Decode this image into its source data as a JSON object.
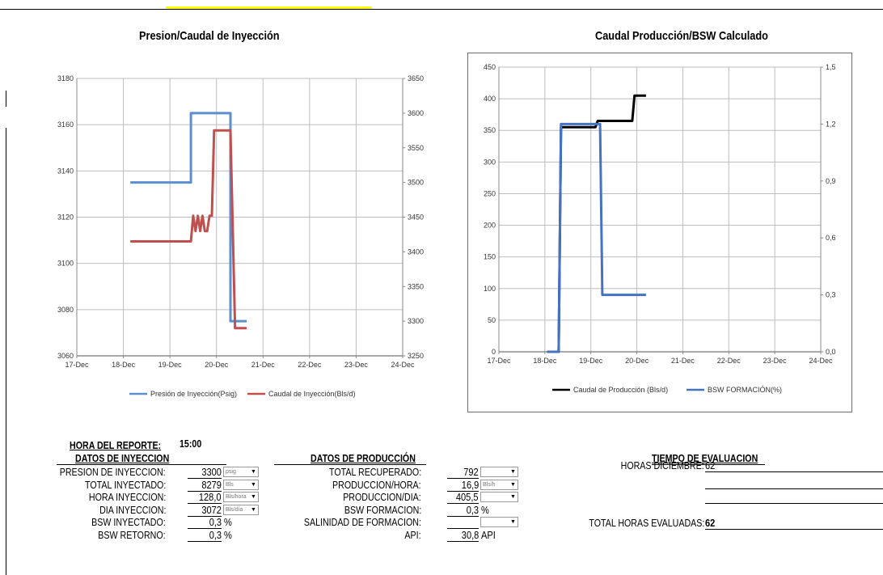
{
  "chart_data": [
    {
      "type": "line",
      "title": "Presion/Caudal de Inyección",
      "x_ticks": [
        "17-Dec",
        "18-Dec",
        "19-Dec",
        "20-Dec",
        "21-Dec",
        "22-Dec",
        "23-Dec",
        "24-Dec"
      ],
      "y_left_ticks": [
        "3180",
        "3160",
        "3140",
        "3120",
        "3100",
        "3080",
        "3060"
      ],
      "y_right_ticks": [
        "3650",
        "3600",
        "3550",
        "3500",
        "3450",
        "3400",
        "3350",
        "3300",
        "3250"
      ],
      "ylim_left": [
        3060,
        3180
      ],
      "ylim_right": [
        3250,
        3650
      ],
      "grid": true,
      "legend_position": "bottom",
      "series": [
        {
          "name": "Presión de Inyección(Psig)",
          "axis": "left",
          "color": "#5b8fd0",
          "points": [
            [
              1.15,
              3135
            ],
            [
              2.45,
              3135
            ],
            [
              2.45,
              3165
            ],
            [
              3.3,
              3165
            ],
            [
              3.3,
              3075
            ],
            [
              3.65,
              3075
            ]
          ]
        },
        {
          "name": "Caudal de Inyección(Bls/d)",
          "axis": "right",
          "color": "#c0504d",
          "points": [
            [
              1.15,
              3415
            ],
            [
              2.45,
              3415
            ],
            [
              2.5,
              3452
            ],
            [
              2.55,
              3430
            ],
            [
              2.6,
              3452
            ],
            [
              2.65,
              3430
            ],
            [
              2.7,
              3452
            ],
            [
              2.75,
              3430
            ],
            [
              2.8,
              3430
            ],
            [
              2.85,
              3452
            ],
            [
              2.9,
              3452
            ],
            [
              2.95,
              3575
            ],
            [
              3.3,
              3575
            ],
            [
              3.4,
              3290
            ],
            [
              3.65,
              3290
            ]
          ]
        }
      ]
    },
    {
      "type": "line",
      "title": "Caudal Producción/BSW Calculado",
      "x_ticks": [
        "17-Dec",
        "18-Dec",
        "19-Dec",
        "20-Dec",
        "21-Dec",
        "22-Dec",
        "23-Dec",
        "24-Dec"
      ],
      "y_left_ticks": [
        "450",
        "400",
        "350",
        "300",
        "250",
        "200",
        "150",
        "100",
        "50",
        "0"
      ],
      "y_right_ticks": [
        "1,5",
        "1,2",
        "0,9",
        "0,6",
        "0,3",
        "0,0"
      ],
      "ylim_left": [
        0,
        450
      ],
      "ylim_right": [
        0,
        1.5
      ],
      "grid": true,
      "legend_position": "bottom",
      "series": [
        {
          "name": "Caudal de Producción (Bls/d)",
          "axis": "left",
          "color": "#000000",
          "points": [
            [
              1.05,
              0
            ],
            [
              1.3,
              0
            ],
            [
              1.35,
              355
            ],
            [
              2.0,
              355
            ],
            [
              2.1,
              355
            ],
            [
              2.15,
              365
            ],
            [
              2.9,
              365
            ],
            [
              2.95,
              405
            ],
            [
              3.2,
              405
            ]
          ]
        },
        {
          "name": "BSW FORMACIÓN(%)",
          "axis": "right",
          "color": "#4472c4",
          "points": [
            [
              1.05,
              0
            ],
            [
              1.3,
              0
            ],
            [
              1.35,
              1.2
            ],
            [
              2.2,
              1.2
            ],
            [
              2.25,
              0.3
            ],
            [
              3.2,
              0.3
            ]
          ]
        }
      ]
    }
  ],
  "report": {
    "hora_label": "HORA DEL REPORTE:",
    "hora_value": "15:00",
    "inyeccion": {
      "header": "DATOS DE INYECCION",
      "rows": [
        {
          "label": "PRESION DE INYECCION:",
          "value": "3300",
          "unit_select": "psig"
        },
        {
          "label": "TOTAL INYECTADO:",
          "value": "8279",
          "unit_select": "Bls"
        },
        {
          "label": "HORA INYECCION:",
          "value": "128,0",
          "unit_select": "Bls/hora"
        },
        {
          "label": "DIA INYECCION:",
          "value": "3072",
          "unit_select": "Bls/día"
        },
        {
          "label": "BSW INYECTADO:",
          "value": "0,3",
          "unit_text": "%"
        },
        {
          "label": "BSW RETORNO:",
          "value": "0,3",
          "unit_text": "%"
        }
      ]
    },
    "produccion": {
      "header": "DATOS DE PRODUCCIÓN",
      "rows": [
        {
          "label": "TOTAL RECUPERADO:",
          "value": "792",
          "unit_select": ""
        },
        {
          "label": "PRODUCCION/HORA:",
          "value": "16,9",
          "unit_select": "Bls/h"
        },
        {
          "label": "PRODUCCION/DIA:",
          "value": "405,5",
          "unit_select": ""
        },
        {
          "label": "BSW FORMACION:",
          "value": "0,3",
          "unit_text": "%"
        },
        {
          "label": "SALINIDAD DE FORMACION:",
          "value": "",
          "unit_select": ""
        },
        {
          "label": "API:",
          "value": "30,8",
          "unit_text": "API"
        }
      ]
    },
    "tiempo": {
      "header": "TIEMPO DE EVALUACION",
      "horas_label": "HORAS DICIEMBRE:",
      "horas_value": "62",
      "total_label": "TOTAL HORAS EVALUADAS:",
      "total_value": "62"
    }
  }
}
